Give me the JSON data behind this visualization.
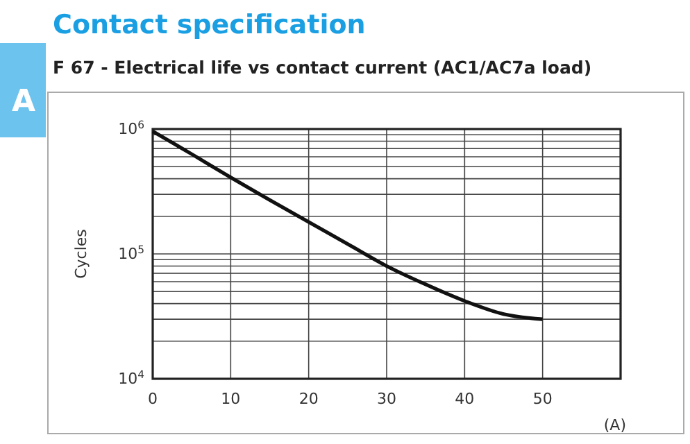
{
  "chart_data": {
    "type": "line",
    "title": "Contact specification",
    "subtitle": "F 67 - Electrical life vs contact current (AC1/AC7a load)",
    "xlabel": "(A)",
    "ylabel": "Cycles",
    "annotations": [
      "A"
    ],
    "series": [
      {
        "color": "#111111",
        "x": [
          0,
          5,
          10,
          15,
          20,
          25,
          30,
          35,
          40,
          45,
          50
        ],
        "values": [
          960000,
          630000,
          410000,
          270000,
          180000,
          120000,
          80000,
          57000,
          42000,
          33000,
          30000
        ]
      }
    ],
    "log": "y",
    "xlim": [
      0,
      60
    ],
    "xticks": [
      0,
      10,
      20,
      30,
      40,
      50
    ],
    "ylim": [
      10000,
      1000000
    ],
    "yticks": [
      {
        "value": 10000,
        "label": "10$^{4}$"
      },
      {
        "value": 100000,
        "label": "10$^{5}$"
      },
      {
        "value": 1000000,
        "label": "10$^{6}$"
      }
    ],
    "grid": true,
    "marker": "none",
    "line_style": "solid"
  }
}
